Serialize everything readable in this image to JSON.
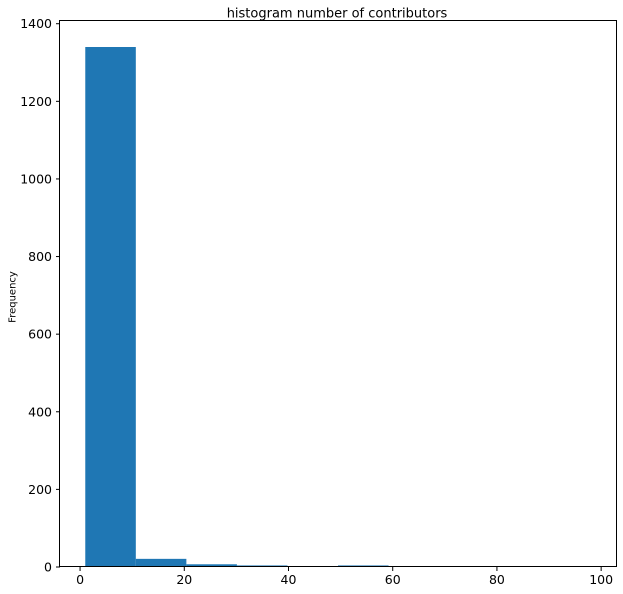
{
  "chart_data": {
    "type": "bar",
    "title": "histogram number of contributors",
    "xlabel": "",
    "ylabel": "Frequency",
    "bins": [
      {
        "start": 1.0,
        "end": 10.7,
        "count": 1340
      },
      {
        "start": 10.7,
        "end": 20.4,
        "count": 21
      },
      {
        "start": 20.4,
        "end": 30.1,
        "count": 7
      },
      {
        "start": 30.1,
        "end": 39.8,
        "count": 4
      },
      {
        "start": 39.8,
        "end": 49.5,
        "count": 2
      },
      {
        "start": 49.5,
        "end": 59.2,
        "count": 4
      },
      {
        "start": 59.2,
        "end": 68.9,
        "count": 2
      },
      {
        "start": 68.9,
        "end": 78.6,
        "count": 0
      },
      {
        "start": 78.6,
        "end": 88.3,
        "count": 1
      },
      {
        "start": 88.3,
        "end": 98.0,
        "count": 1
      }
    ],
    "xlim": [
      -3.85,
      102.85
    ],
    "ylim": [
      0,
      1407
    ],
    "xticks": [
      0,
      20,
      40,
      60,
      80,
      100
    ],
    "yticks": [
      0,
      200,
      400,
      600,
      800,
      1000,
      1200,
      1400
    ],
    "bar_color": "#1f77b4",
    "grid": false,
    "legend": "none"
  }
}
